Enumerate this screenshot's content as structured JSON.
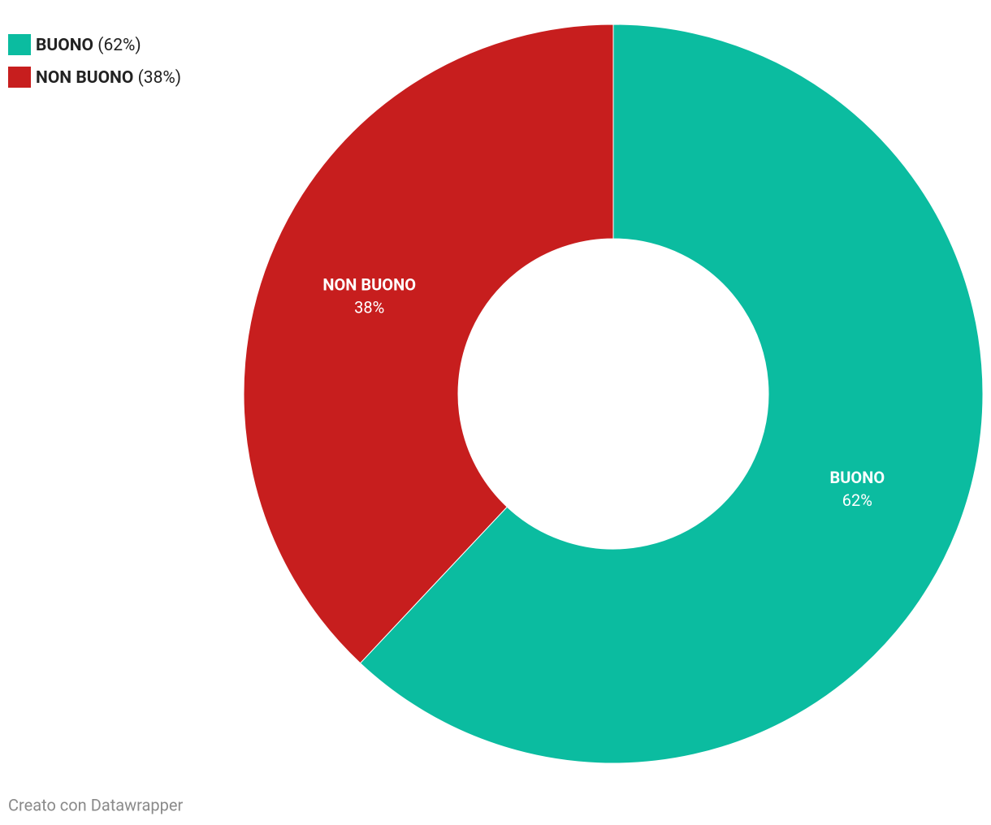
{
  "chart_data": {
    "type": "donut",
    "categories": [
      "BUONO",
      "NON BUONO"
    ],
    "values": [
      62,
      38
    ],
    "value_labels": [
      "62%",
      "38%"
    ],
    "legend_labels": [
      "(62%)",
      "(38%)"
    ],
    "colors": [
      "#0bbca0",
      "#c71e1e"
    ],
    "legend": "top-left",
    "footer": "Creato con Datawrapper"
  }
}
